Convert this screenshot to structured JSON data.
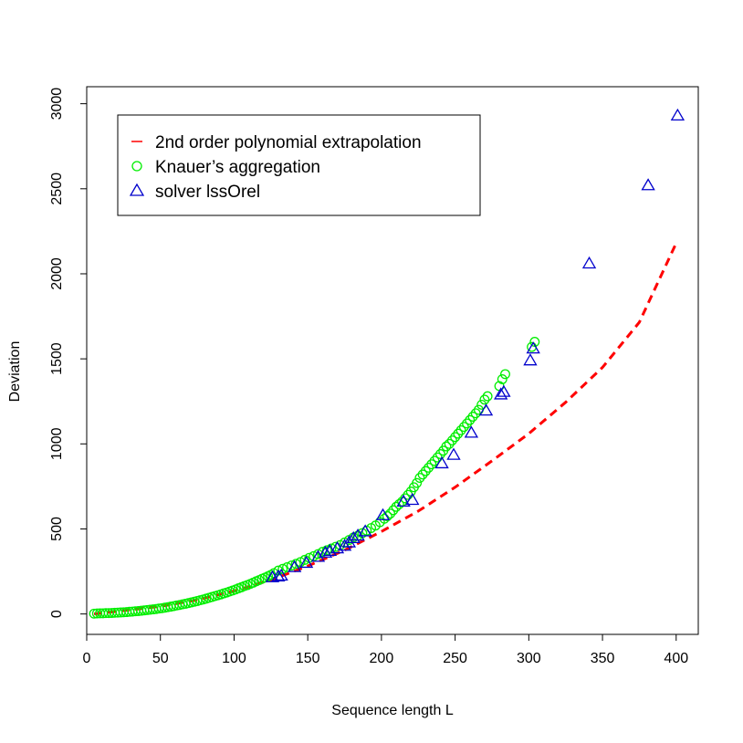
{
  "chart_data": {
    "type": "scatter",
    "title": "",
    "xlabel": "Sequence length L",
    "ylabel": "Deviation",
    "xlim": [
      0,
      415
    ],
    "ylim": [
      -120,
      3100
    ],
    "xticks": [
      0,
      50,
      100,
      150,
      200,
      250,
      300,
      350,
      400
    ],
    "yticks": [
      0,
      500,
      1000,
      1500,
      2000,
      2500,
      3000
    ],
    "grid": false,
    "legend": {
      "placement": "top-left",
      "entries": [
        {
          "label": "2nd order polynomial extrapolation",
          "symbol": "dash",
          "color": "#ff0000"
        },
        {
          "label": "Knauer’s aggregation",
          "symbol": "circle",
          "color": "#00ee00"
        },
        {
          "label": "solver lssOrel",
          "symbol": "triangle",
          "color": "#0000cc"
        }
      ]
    },
    "series": [
      {
        "name": "2nd order polynomial extrapolation",
        "kind": "line",
        "style": "dashed",
        "color": "#ff0000",
        "x": [
          5,
          25,
          50,
          75,
          100,
          125,
          150,
          175,
          200,
          225,
          250,
          275,
          300,
          325,
          350,
          375,
          400
        ],
        "y": [
          0,
          20,
          45,
          83,
          135,
          200,
          282,
          375,
          485,
          605,
          745,
          900,
          1060,
          1245,
          1450,
          1715,
          2180
        ]
      },
      {
        "name": "Knauer’s aggregation",
        "kind": "points",
        "marker": "circle",
        "color": "#00ee00",
        "x": [
          5,
          7,
          9,
          11,
          13,
          15,
          17,
          19,
          21,
          23,
          25,
          27,
          29,
          31,
          33,
          35,
          37,
          39,
          41,
          43,
          45,
          47,
          49,
          51,
          53,
          55,
          57,
          59,
          61,
          63,
          65,
          67,
          69,
          71,
          73,
          75,
          77,
          79,
          81,
          83,
          85,
          87,
          89,
          91,
          93,
          95,
          97,
          99,
          101,
          103,
          105,
          107,
          109,
          111,
          113,
          115,
          117,
          119,
          121,
          123,
          125,
          127,
          130,
          133,
          136,
          139,
          142,
          145,
          148,
          151,
          154,
          157,
          160,
          163,
          166,
          169,
          172,
          175,
          178,
          181,
          184,
          187,
          190,
          193,
          196,
          199,
          202,
          204,
          206,
          208,
          210,
          212,
          214,
          216,
          218,
          220,
          222,
          224,
          226,
          228,
          230,
          232,
          234,
          236,
          238,
          240,
          242,
          244,
          246,
          248,
          250,
          252,
          254,
          256,
          258,
          260,
          262,
          264,
          266,
          268,
          270,
          272,
          280,
          282,
          284,
          302,
          304
        ],
        "y": [
          2,
          3,
          4,
          4,
          5,
          5,
          6,
          7,
          8,
          9,
          10,
          11,
          13,
          14,
          16,
          17,
          19,
          21,
          23,
          25,
          27,
          29,
          32,
          34,
          37,
          40,
          43,
          46,
          50,
          53,
          57,
          60,
          64,
          68,
          72,
          76,
          81,
          85,
          90,
          95,
          100,
          105,
          110,
          115,
          121,
          126,
          132,
          138,
          144,
          151,
          157,
          164,
          170,
          177,
          184,
          192,
          199,
          207,
          214,
          222,
          230,
          240,
          255,
          265,
          275,
          285,
          295,
          305,
          318,
          330,
          340,
          352,
          365,
          375,
          385,
          395,
          405,
          420,
          435,
          450,
          460,
          475,
          490,
          505,
          520,
          540,
          560,
          575,
          590,
          610,
          630,
          645,
          660,
          680,
          700,
          720,
          745,
          770,
          800,
          820,
          840,
          860,
          880,
          900,
          920,
          940,
          960,
          985,
          1000,
          1020,
          1040,
          1060,
          1080,
          1100,
          1120,
          1140,
          1160,
          1180,
          1200,
          1230,
          1260,
          1280,
          1340,
          1380,
          1410,
          1570,
          1600
        ]
      },
      {
        "name": "solver lssOrel",
        "kind": "points",
        "marker": "triangle",
        "color": "#0000cc",
        "x": [
          126,
          130,
          132,
          141,
          149,
          157,
          162,
          165,
          170,
          175,
          178,
          181,
          184,
          189,
          201,
          215,
          221,
          241,
          249,
          261,
          271,
          281,
          283,
          301,
          303,
          341,
          381,
          401
        ],
        "y": [
          210,
          215,
          220,
          270,
          295,
          330,
          355,
          365,
          380,
          395,
          415,
          440,
          455,
          480,
          575,
          655,
          665,
          880,
          930,
          1060,
          1190,
          1285,
          1300,
          1485,
          1555,
          2055,
          2515,
          2925
        ]
      }
    ]
  }
}
